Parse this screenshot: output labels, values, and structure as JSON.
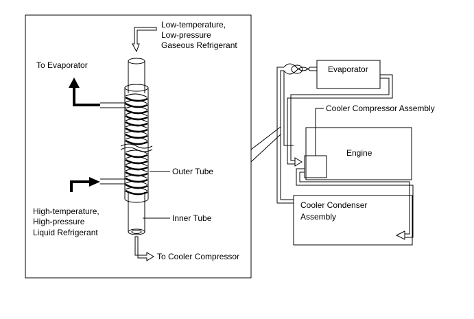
{
  "left_panel": {
    "inlet_label_1": "Low-temperature,",
    "inlet_label_2": "Low-pressure",
    "inlet_label_3": "Gaseous Refrigerant",
    "to_evaporator": "To Evaporator",
    "outer_tube": "Outer Tube",
    "inner_tube": "Inner Tube",
    "liquid_label_1": "High-temperature,",
    "liquid_label_2": "High-pressure",
    "liquid_label_3": "Liquid Refrigerant",
    "to_compressor": "To Cooler Compressor"
  },
  "right_panel": {
    "evaporator": "Evaporator",
    "compressor_assembly": "Cooler Compressor Assembly",
    "engine": "Engine",
    "condenser_1": "Cooler Condenser",
    "condenser_2": "Assembly"
  }
}
